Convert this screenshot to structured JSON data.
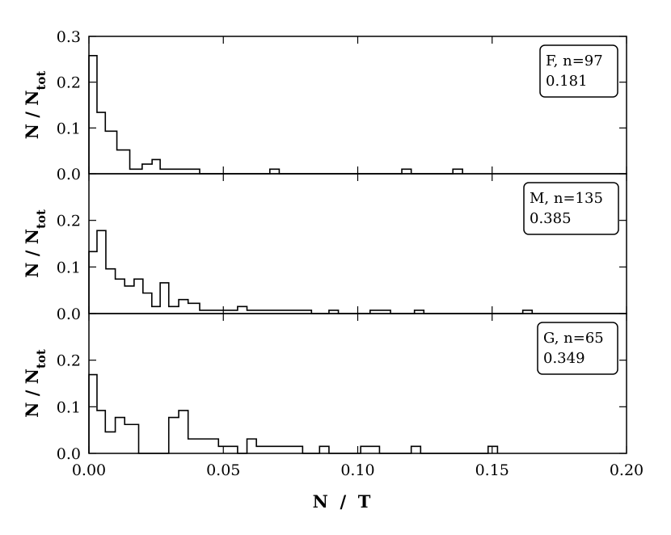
{
  "chart_data": {
    "type": "histogram",
    "xlabel": "N  /  T",
    "ylabel": "N / N",
    "ylabel_sub": "tot",
    "xlim": [
      0.0,
      0.2
    ],
    "ylim": [
      0.0,
      0.3
    ],
    "xticks": [
      "0.00",
      "0.05",
      "0.10",
      "0.15",
      "0.20"
    ],
    "bin_width": 0.0061,
    "panels": [
      {
        "yticks": [
          "0.0",
          "0.1",
          "0.2",
          "0.3"
        ],
        "annotation": [
          "F, n=97",
          "0.181"
        ],
        "steps": [
          [
            0.0,
            0.258
          ],
          [
            0.003,
            0.134
          ],
          [
            0.0061,
            0.093
          ],
          [
            0.0104,
            0.052
          ],
          [
            0.0152,
            0.01
          ],
          [
            0.0198,
            0.021
          ],
          [
            0.0235,
            0.031
          ],
          [
            0.0265,
            0.01
          ],
          [
            0.0412,
            0.0
          ],
          [
            0.0673,
            0.01
          ],
          [
            0.0708,
            0.0
          ],
          [
            0.1164,
            0.01
          ],
          [
            0.1199,
            0.0
          ],
          [
            0.1354,
            0.01
          ],
          [
            0.139,
            0.0
          ]
        ]
      },
      {
        "yticks": [
          "0.0",
          "0.1",
          "0.2"
        ],
        "annotation": [
          "M, n=135",
          "0.385"
        ],
        "steps": [
          [
            0.0,
            0.133
          ],
          [
            0.003,
            0.178
          ],
          [
            0.0063,
            0.096
          ],
          [
            0.0098,
            0.074
          ],
          [
            0.0133,
            0.059
          ],
          [
            0.0168,
            0.074
          ],
          [
            0.0201,
            0.044
          ],
          [
            0.0234,
            0.015
          ],
          [
            0.0265,
            0.066
          ],
          [
            0.0297,
            0.015
          ],
          [
            0.0334,
            0.03
          ],
          [
            0.0369,
            0.022
          ],
          [
            0.0412,
            0.007
          ],
          [
            0.0553,
            0.015
          ],
          [
            0.0588,
            0.007
          ],
          [
            0.0828,
            0.0
          ],
          [
            0.0893,
            0.007
          ],
          [
            0.0928,
            0.0
          ],
          [
            0.1046,
            0.007
          ],
          [
            0.1122,
            0.0
          ],
          [
            0.1211,
            0.007
          ],
          [
            0.1246,
            0.0
          ],
          [
            0.1614,
            0.007
          ],
          [
            0.1649,
            0.0
          ]
        ]
      },
      {
        "yticks": [
          "0.0",
          "0.1",
          "0.2"
        ],
        "annotation": [
          "G, n=65",
          "0.349"
        ],
        "steps": [
          [
            0.0,
            0.169
          ],
          [
            0.003,
            0.092
          ],
          [
            0.0061,
            0.046
          ],
          [
            0.0098,
            0.077
          ],
          [
            0.0133,
            0.062
          ],
          [
            0.0185,
            0.0
          ],
          [
            0.0297,
            0.077
          ],
          [
            0.0334,
            0.092
          ],
          [
            0.0369,
            0.031
          ],
          [
            0.0482,
            0.015
          ],
          [
            0.0553,
            0.0
          ],
          [
            0.0588,
            0.031
          ],
          [
            0.0623,
            0.015
          ],
          [
            0.0795,
            0.0
          ],
          [
            0.0858,
            0.015
          ],
          [
            0.0893,
            0.0
          ],
          [
            0.1011,
            0.015
          ],
          [
            0.1081,
            0.0
          ],
          [
            0.1199,
            0.015
          ],
          [
            0.1234,
            0.0
          ],
          [
            0.1485,
            0.015
          ],
          [
            0.152,
            0.0
          ]
        ]
      }
    ]
  }
}
